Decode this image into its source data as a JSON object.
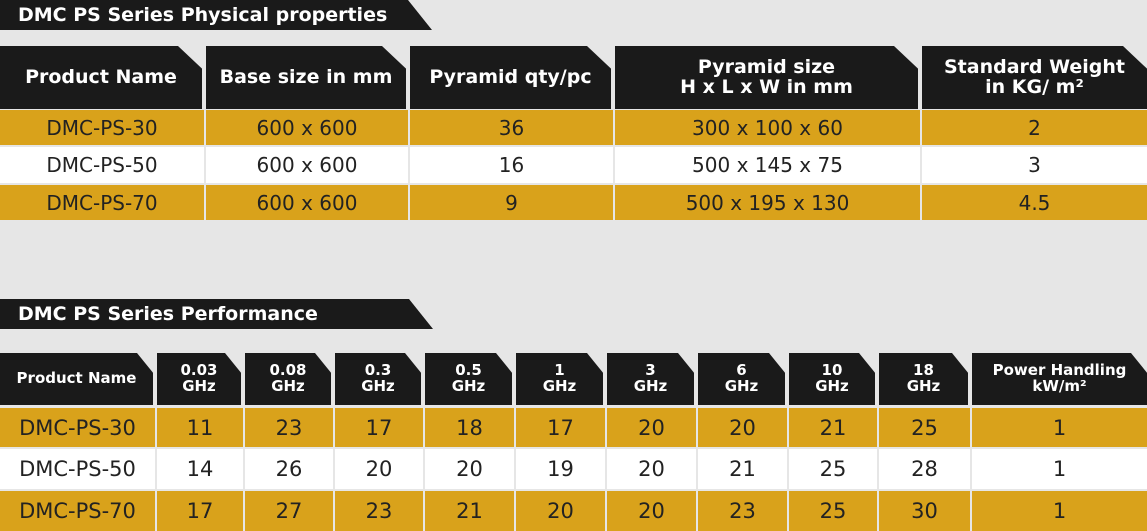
{
  "physical": {
    "title": "DMC PS Series Physical properties",
    "headers": [
      "Product Name",
      "Base size in mm",
      "Pyramid qty/pc",
      "Pyramid size\nH x L x W in mm",
      "Standard Weight\nin KG/ m²"
    ],
    "rows": [
      [
        "DMC-PS-30",
        "600 x 600",
        "36",
        "300 x 100 x 60",
        "2"
      ],
      [
        "DMC-PS-50",
        "600 x 600",
        "16",
        "500 x 145 x 75",
        "3"
      ],
      [
        "DMC-PS-70",
        "600 x 600",
        "9",
        "500 x 195 x 130",
        "4.5"
      ]
    ]
  },
  "performance": {
    "title": "DMC PS Series Performance",
    "headers": [
      "Product Name",
      "0.03\nGHz",
      "0.08\nGHz",
      "0.3\nGHz",
      "0.5\nGHz",
      "1\nGHz",
      "3\nGHz",
      "6\nGHz",
      "10\nGHz",
      "18\nGHz",
      "Power Handling\nkW/m²"
    ],
    "rows": [
      [
        "DMC-PS-30",
        "11",
        "23",
        "17",
        "18",
        "17",
        "20",
        "20",
        "21",
        "25",
        "1"
      ],
      [
        "DMC-PS-50",
        "14",
        "26",
        "20",
        "20",
        "19",
        "20",
        "21",
        "25",
        "28",
        "1"
      ],
      [
        "DMC-PS-70",
        "17",
        "27",
        "23",
        "21",
        "20",
        "20",
        "23",
        "25",
        "30",
        "1"
      ]
    ]
  },
  "colors": {
    "header": "#1a1a1a",
    "gold_row": "#d9a21b",
    "white_row": "#ffffff",
    "background": "#e6e6e6"
  }
}
